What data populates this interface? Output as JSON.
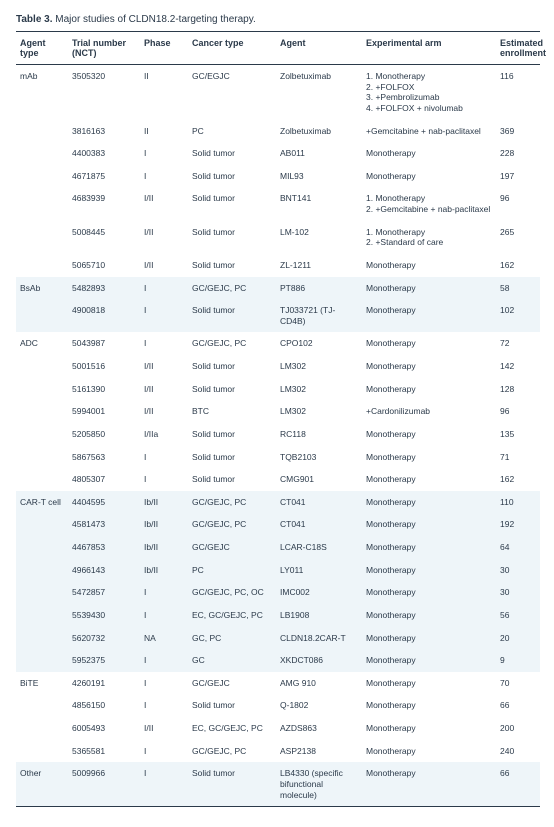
{
  "caption_bold": "Table 3.",
  "caption_rest": " Major studies of CLDN18.2-targeting therapy.",
  "headers": {
    "agent_type": "Agent type",
    "trial": "Trial number (NCT)",
    "phase": "Phase",
    "cancer": "Cancer type",
    "agent": "Agent",
    "exp": "Experimental arm",
    "enroll": "Estimated enrollment"
  },
  "rows": [
    {
      "alt": false,
      "at": "mAb",
      "trial": "3505320",
      "phase": "II",
      "cancer": "GC/EGJC",
      "agent": "Zolbetuximab",
      "exp": "1. Monotherapy\n2. +FOLFOX\n3. +Pembrolizumab\n4. +FOLFOX + nivolumab",
      "enroll": "116"
    },
    {
      "alt": false,
      "at": "",
      "trial": "3816163",
      "phase": "II",
      "cancer": "PC",
      "agent": "Zolbetuximab",
      "exp": "+Gemcitabine + nab-paclitaxel",
      "enroll": "369"
    },
    {
      "alt": false,
      "at": "",
      "trial": "4400383",
      "phase": "I",
      "cancer": "Solid tumor",
      "agent": "AB011",
      "exp": "Monotherapy",
      "enroll": "228"
    },
    {
      "alt": false,
      "at": "",
      "trial": "4671875",
      "phase": "I",
      "cancer": "Solid tumor",
      "agent": "MIL93",
      "exp": "Monotherapy",
      "enroll": "197"
    },
    {
      "alt": false,
      "at": "",
      "trial": "4683939",
      "phase": "I/II",
      "cancer": "Solid tumor",
      "agent": "BNT141",
      "exp": "1. Monotherapy\n2. +Gemcitabine + nab-paclitaxel",
      "enroll": "96"
    },
    {
      "alt": false,
      "at": "",
      "trial": "5008445",
      "phase": "I/II",
      "cancer": "Solid tumor",
      "agent": "LM-102",
      "exp": "1. Monotherapy\n2. +Standard of care",
      "enroll": "265"
    },
    {
      "alt": false,
      "at": "",
      "trial": "5065710",
      "phase": "I/II",
      "cancer": "Solid tumor",
      "agent": "ZL-1211",
      "exp": "Monotherapy",
      "enroll": "162"
    },
    {
      "alt": true,
      "at": "BsAb",
      "trial": "5482893",
      "phase": "I",
      "cancer": "GC/GEJC, PC",
      "agent": "PT886",
      "exp": "Monotherapy",
      "enroll": "58"
    },
    {
      "alt": true,
      "at": "",
      "trial": "4900818",
      "phase": "I",
      "cancer": "Solid tumor",
      "agent": "TJ033721 (TJ-CD4B)",
      "exp": "Monotherapy",
      "enroll": "102"
    },
    {
      "alt": false,
      "at": "ADC",
      "trial": "5043987",
      "phase": "I",
      "cancer": "GC/GEJC, PC",
      "agent": "CPO102",
      "exp": "Monotherapy",
      "enroll": "72"
    },
    {
      "alt": false,
      "at": "",
      "trial": "5001516",
      "phase": "I/II",
      "cancer": "Solid tumor",
      "agent": "LM302",
      "exp": "Monotherapy",
      "enroll": "142"
    },
    {
      "alt": false,
      "at": "",
      "trial": "5161390",
      "phase": "I/II",
      "cancer": "Solid tumor",
      "agent": "LM302",
      "exp": "Monotherapy",
      "enroll": "128"
    },
    {
      "alt": false,
      "at": "",
      "trial": "5994001",
      "phase": "I/II",
      "cancer": "BTC",
      "agent": "LM302",
      "exp": "+Cardonilizumab",
      "enroll": "96"
    },
    {
      "alt": false,
      "at": "",
      "trial": "5205850",
      "phase": "I/IIa",
      "cancer": "Solid tumor",
      "agent": "RC118",
      "exp": "Monotherapy",
      "enroll": "135"
    },
    {
      "alt": false,
      "at": "",
      "trial": "5867563",
      "phase": "I",
      "cancer": "Solid tumor",
      "agent": "TQB2103",
      "exp": "Monotherapy",
      "enroll": "71"
    },
    {
      "alt": false,
      "at": "",
      "trial": "4805307",
      "phase": "I",
      "cancer": "Solid tumor",
      "agent": "CMG901",
      "exp": "Monotherapy",
      "enroll": "162"
    },
    {
      "alt": true,
      "at": "CAR-T cell",
      "trial": "4404595",
      "phase": "Ib/II",
      "cancer": "GC/GEJC, PC",
      "agent": "CT041",
      "exp": "Monotherapy",
      "enroll": "110"
    },
    {
      "alt": true,
      "at": "",
      "trial": "4581473",
      "phase": "Ib/II",
      "cancer": "GC/GEJC, PC",
      "agent": "CT041",
      "exp": "Monotherapy",
      "enroll": "192"
    },
    {
      "alt": true,
      "at": "",
      "trial": "4467853",
      "phase": "Ib/II",
      "cancer": "GC/GEJC",
      "agent": "LCAR-C18S",
      "exp": "Monotherapy",
      "enroll": "64"
    },
    {
      "alt": true,
      "at": "",
      "trial": "4966143",
      "phase": "Ib/II",
      "cancer": "PC",
      "agent": "LY011",
      "exp": "Monotherapy",
      "enroll": "30"
    },
    {
      "alt": true,
      "at": "",
      "trial": "5472857",
      "phase": "I",
      "cancer": "GC/GEJC, PC, OC",
      "agent": "IMC002",
      "exp": "Monotherapy",
      "enroll": "30"
    },
    {
      "alt": true,
      "at": "",
      "trial": "5539430",
      "phase": "I",
      "cancer": "EC, GC/GEJC, PC",
      "agent": "LB1908",
      "exp": "Monotherapy",
      "enroll": "56"
    },
    {
      "alt": true,
      "at": "",
      "trial": "5620732",
      "phase": "NA",
      "cancer": "GC, PC",
      "agent": "CLDN18.2CAR-T",
      "exp": "Monotherapy",
      "enroll": "20"
    },
    {
      "alt": true,
      "at": "",
      "trial": "5952375",
      "phase": "I",
      "cancer": "GC",
      "agent": "XKDCT086",
      "exp": "Monotherapy",
      "enroll": "9"
    },
    {
      "alt": false,
      "at": "BiTE",
      "trial": "4260191",
      "phase": "I",
      "cancer": "GC/GEJC",
      "agent": "AMG 910",
      "exp": "Monotherapy",
      "enroll": "70"
    },
    {
      "alt": false,
      "at": "",
      "trial": "4856150",
      "phase": "I",
      "cancer": "Solid tumor",
      "agent": "Q-1802",
      "exp": "Monotherapy",
      "enroll": "66"
    },
    {
      "alt": false,
      "at": "",
      "trial": "6005493",
      "phase": "I/II",
      "cancer": "EC, GC/GEJC, PC",
      "agent": "AZDS863",
      "exp": "Monotherapy",
      "enroll": "200"
    },
    {
      "alt": false,
      "at": "",
      "trial": "5365581",
      "phase": "I",
      "cancer": "GC/GEJC, PC",
      "agent": "ASP2138",
      "exp": "Monotherapy",
      "enroll": "240"
    },
    {
      "alt": true,
      "at": "Other",
      "trial": "5009966",
      "phase": "I",
      "cancer": "Solid tumor",
      "agent": "LB4330 (specific bifunctional molecule)",
      "exp": "Monotherapy",
      "enroll": "66"
    }
  ]
}
